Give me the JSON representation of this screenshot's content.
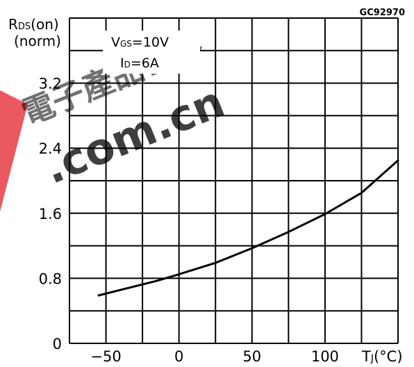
{
  "figure_code": "GC92970",
  "watermark": {
    "cjk_text": "電子產品世界",
    "domain_text": ".com.cn",
    "color": "#e8474f"
  },
  "chart_data": {
    "type": "line",
    "title": "",
    "ylabel": {
      "main": "R",
      "sub": "DS",
      "suffix": "(on)",
      "unit": "(norm)"
    },
    "xlabel": {
      "main": "T",
      "sub": "J",
      "unit": "(°C)"
    },
    "conditions": [
      {
        "main": "V",
        "sub": "GS",
        "rest": "=10V"
      },
      {
        "main": "I",
        "sub": "D",
        "rest": "=6A"
      }
    ],
    "xlim": [
      -75,
      150
    ],
    "ylim": [
      0,
      4.0
    ],
    "x_grid": [
      -75,
      -50,
      -25,
      0,
      25,
      50,
      75,
      100,
      125,
      150
    ],
    "y_grid": [
      0,
      0.4,
      0.8,
      1.2,
      1.6,
      2.0,
      2.4,
      2.8,
      3.2,
      3.6,
      4.0
    ],
    "x_ticks": [
      -50,
      0,
      50,
      100
    ],
    "x_tick_labels": [
      "−50",
      "0",
      "50",
      "100"
    ],
    "y_ticks": [
      0,
      0.8,
      1.6,
      2.4,
      3.2
    ],
    "y_tick_labels": [
      "0",
      "0.8",
      "1.6",
      "2.4",
      "3.2"
    ],
    "grid": true,
    "series": [
      {
        "color": "#000000",
        "x": [
          -55,
          -35,
          -15,
          0,
          25,
          50,
          75,
          100,
          125,
          150
        ],
        "y": [
          0.59,
          0.68,
          0.77,
          0.85,
          0.99,
          1.17,
          1.37,
          1.59,
          1.85,
          2.25
        ]
      }
    ]
  }
}
